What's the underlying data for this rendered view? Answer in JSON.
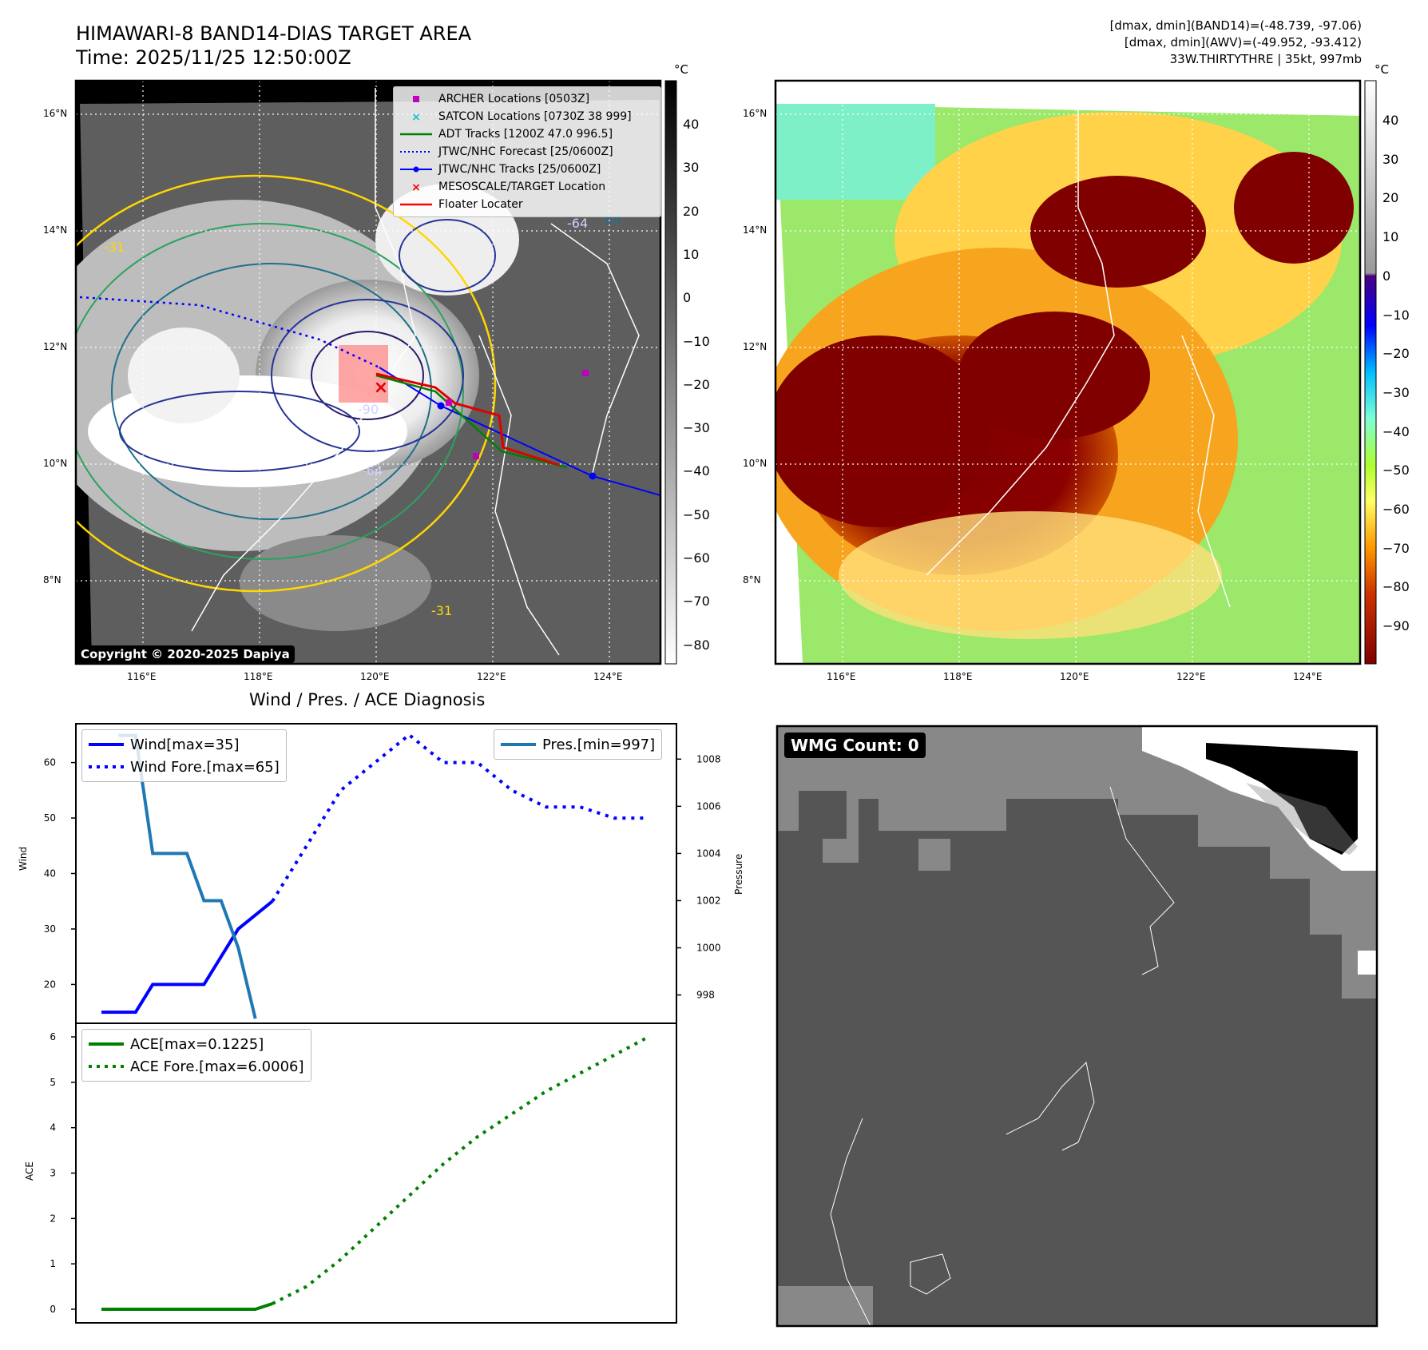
{
  "header": {
    "title": "HIMAWARI-8 BAND14-DIAS TARGET AREA",
    "time": "Time: 2025/11/25 12:50:00Z",
    "info_line1": "[dmax, dmin](BAND14)=(-48.739, -97.06)",
    "info_line2": "[dmax, dmin](AWV)=(-49.952, -93.412)",
    "info_line3": "33W.THIRTYTHRE | 35kt, 997mb"
  },
  "map": {
    "lon_ticks": [
      "116°E",
      "118°E",
      "120°E",
      "122°E",
      "124°E"
    ],
    "lat_ticks": [
      "16°N",
      "14°N",
      "12°N",
      "10°N",
      "8°N"
    ],
    "copyright": "Copyright © 2020-2025 Dapiya",
    "contour_labels": [
      "-64",
      "-90",
      "-64",
      "-31",
      "-31",
      "-64"
    ],
    "legend": [
      {
        "label": "ARCHER Locations [0503Z]",
        "color": "#bf00bf",
        "marker": "square"
      },
      {
        "label": "SATCON Locations [0730Z 38 999]",
        "color": "#17becf",
        "marker": "x"
      },
      {
        "label": "ADT Tracks [1200Z 47.0 996.5]",
        "color": "#008000",
        "marker": "line"
      },
      {
        "label": "JTWC/NHC Forecast [25/0600Z]",
        "color": "#0000ff",
        "marker": "dotted"
      },
      {
        "label": "JTWC/NHC Tracks [25/0600Z]",
        "color": "#0000ff",
        "marker": "line-dot"
      },
      {
        "label": "MESOSCALE/TARGET Location",
        "color": "#ff0000",
        "marker": "x"
      },
      {
        "label": "Floater Locater",
        "color": "#ff0000",
        "marker": "line"
      }
    ]
  },
  "colorbar_gray": {
    "unit": "°C",
    "ticks": [
      "40",
      "30",
      "20",
      "10",
      "0",
      "−10",
      "−20",
      "−30",
      "−40",
      "−50",
      "−60",
      "−70",
      "−80"
    ]
  },
  "colorbar_color": {
    "unit": "°C",
    "ticks": [
      "40",
      "30",
      "20",
      "10",
      "0",
      "−10",
      "−20",
      "−30",
      "−40",
      "−50",
      "−60",
      "−70",
      "−80",
      "−90"
    ]
  },
  "diagnosis_title": "Wind / Pres. / ACE Diagnosis",
  "wmg_label": "WMG Count: 0",
  "chart_data": [
    {
      "type": "line",
      "title": "Wind / Pres. / ACE Diagnosis",
      "ylabel": "Wind",
      "ylim": [
        13,
        67
      ],
      "y_ticks": [
        "60",
        "50",
        "40",
        "30",
        "20"
      ],
      "series": [
        {
          "name": "Wind[max=35]",
          "color": "#0000ff",
          "style": "solid",
          "x": [
            0,
            2,
            3,
            4,
            5,
            6,
            7,
            8,
            10
          ],
          "values": [
            15,
            15,
            20,
            20,
            20,
            20,
            25,
            30,
            35
          ]
        },
        {
          "name": "Wind Fore.[max=65]",
          "color": "#0000ff",
          "style": "dotted",
          "x": [
            10,
            12,
            14,
            16,
            18,
            20,
            22,
            24,
            26,
            28,
            30,
            32
          ],
          "values": [
            35,
            45,
            55,
            60,
            65,
            60,
            60,
            55,
            52,
            52,
            50,
            50
          ]
        }
      ]
    },
    {
      "type": "line",
      "ylabel": "Pressure",
      "ylim": [
        996.8,
        1009.5
      ],
      "y_ticks": [
        "1008",
        "1006",
        "1004",
        "1002",
        "1000",
        "998"
      ],
      "series": [
        {
          "name": "Pres.[min=997]",
          "color": "#1f77b4",
          "style": "solid",
          "x": [
            1,
            2,
            3,
            4,
            5,
            6,
            7,
            8,
            9
          ],
          "values": [
            1009,
            1009,
            1004,
            1004,
            1004,
            1002,
            1002,
            1000,
            997
          ]
        }
      ]
    },
    {
      "type": "line",
      "ylabel": "ACE",
      "ylim": [
        -0.3,
        6.3
      ],
      "y_ticks": [
        "6",
        "5",
        "4",
        "3",
        "2",
        "1",
        "0"
      ],
      "series": [
        {
          "name": "ACE[max=0.1225]",
          "color": "#008000",
          "style": "solid",
          "x": [
            0,
            4,
            6,
            9,
            10
          ],
          "values": [
            0,
            0,
            0,
            0,
            0.1225
          ]
        },
        {
          "name": "ACE Fore.[max=6.0006]",
          "color": "#008000",
          "style": "dotted",
          "x": [
            10,
            12,
            14,
            16,
            18,
            20,
            22,
            24,
            26,
            28,
            30,
            32
          ],
          "values": [
            0.1225,
            0.5,
            1.1,
            1.8,
            2.5,
            3.2,
            3.8,
            4.3,
            4.8,
            5.2,
            5.6,
            6.0006
          ]
        }
      ]
    }
  ]
}
